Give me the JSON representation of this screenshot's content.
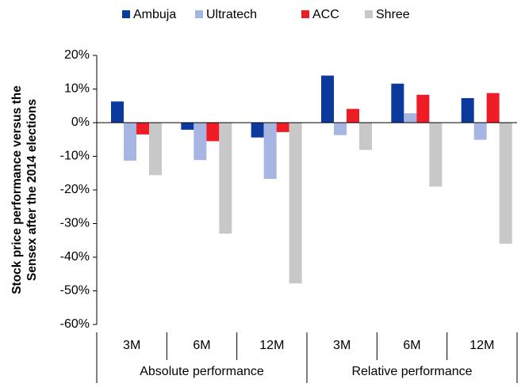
{
  "chart_data": {
    "type": "bar",
    "y_label": [
      "Stock price performance versus the",
      "Sensex after the 2014 elections"
    ],
    "categories": [
      "3M",
      "6M",
      "12M",
      "3M",
      "6M",
      "12M"
    ],
    "group_labels": [
      "Absolute performance",
      "Relative performance"
    ],
    "series": [
      {
        "name": "Ambuja",
        "color": "#0b3a9c",
        "values": [
          6.3,
          -2.1,
          -4.4,
          14,
          11.6,
          7.3
        ]
      },
      {
        "name": "Ultratech",
        "color": "#a7b5e2",
        "values": [
          -11.3,
          -11.1,
          -16.7,
          -3.7,
          2.8,
          -5.1
        ]
      },
      {
        "name": "ACC",
        "color": "#ee1c25",
        "values": [
          -3.5,
          -5.5,
          -2.8,
          4.1,
          8.3,
          8.8
        ]
      },
      {
        "name": "Shree",
        "color": "#c8c8c8",
        "values": [
          -15.6,
          -33,
          -47.8,
          -8.1,
          -19,
          -36
        ]
      }
    ],
    "ylim": [
      -60,
      20
    ],
    "yticks": [
      {
        "value": -60,
        "label": "-60%"
      },
      {
        "value": -50,
        "label": "-50%"
      },
      {
        "value": -40,
        "label": "-40%"
      },
      {
        "value": -30,
        "label": "-30%"
      },
      {
        "value": -20,
        "label": "-20%"
      },
      {
        "value": -10,
        "label": "-10%"
      },
      {
        "value": 0,
        "label": "0%"
      },
      {
        "value": 10,
        "label": "10%"
      },
      {
        "value": 20,
        "label": "20%"
      }
    ],
    "grid": false,
    "legend": "top"
  }
}
